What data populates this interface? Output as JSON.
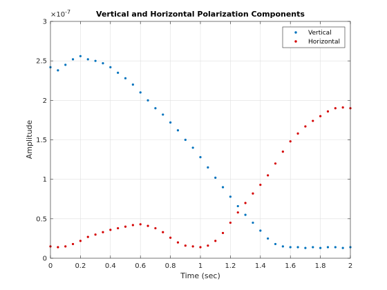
{
  "chart_data": {
    "type": "scatter",
    "title": "Vertical and Horizontal Polarization Components",
    "xlabel": "Time (sec)",
    "ylabel": "Amplitude",
    "y_exponent_label": "×10",
    "y_exponent_power": "-7",
    "xlim": [
      0,
      2
    ],
    "ylim": [
      0,
      3
    ],
    "x_ticks": [
      0,
      0.2,
      0.4,
      0.6,
      0.8,
      1,
      1.2,
      1.4,
      1.6,
      1.8,
      2
    ],
    "x_tick_labels": [
      "0",
      "0.2",
      "0.4",
      "0.6",
      "0.8",
      "1",
      "1.2",
      "1.4",
      "1.6",
      "1.8",
      "2"
    ],
    "y_ticks": [
      0,
      0.5,
      1,
      1.5,
      2,
      2.5,
      3
    ],
    "y_tick_labels": [
      "0",
      "0.5",
      "1",
      "1.5",
      "2",
      "2.5",
      "3"
    ],
    "grid": true,
    "legend_position": "top-right",
    "series": [
      {
        "name": "Vertical",
        "color": "#0072BD",
        "x": [
          0,
          0.05,
          0.1,
          0.15,
          0.2,
          0.25,
          0.3,
          0.35,
          0.4,
          0.45,
          0.5,
          0.55,
          0.6,
          0.65,
          0.7,
          0.75,
          0.8,
          0.85,
          0.9,
          0.95,
          1,
          1.05,
          1.1,
          1.15,
          1.2,
          1.25,
          1.3,
          1.35,
          1.4,
          1.45,
          1.5,
          1.55,
          1.6,
          1.65,
          1.7,
          1.75,
          1.8,
          1.85,
          1.9,
          1.95,
          2
        ],
        "y": [
          2.42,
          2.38,
          2.45,
          2.52,
          2.56,
          2.52,
          2.5,
          2.47,
          2.42,
          2.35,
          2.28,
          2.2,
          2.1,
          2.0,
          1.9,
          1.82,
          1.72,
          1.62,
          1.5,
          1.4,
          1.28,
          1.15,
          1.02,
          0.9,
          0.78,
          0.66,
          0.55,
          0.45,
          0.35,
          0.25,
          0.18,
          0.15,
          0.14,
          0.14,
          0.13,
          0.14,
          0.13,
          0.14,
          0.14,
          0.13,
          0.14
        ]
      },
      {
        "name": "Horizontal",
        "color": "#D40000",
        "x": [
          0,
          0.05,
          0.1,
          0.15,
          0.2,
          0.25,
          0.3,
          0.35,
          0.4,
          0.45,
          0.5,
          0.55,
          0.6,
          0.65,
          0.7,
          0.75,
          0.8,
          0.85,
          0.9,
          0.95,
          1,
          1.05,
          1.1,
          1.15,
          1.2,
          1.25,
          1.3,
          1.35,
          1.4,
          1.45,
          1.5,
          1.55,
          1.6,
          1.65,
          1.7,
          1.75,
          1.8,
          1.85,
          1.9,
          1.95,
          2
        ],
        "y": [
          0.15,
          0.14,
          0.15,
          0.18,
          0.22,
          0.27,
          0.3,
          0.33,
          0.36,
          0.38,
          0.4,
          0.42,
          0.43,
          0.41,
          0.38,
          0.33,
          0.26,
          0.2,
          0.16,
          0.15,
          0.14,
          0.16,
          0.22,
          0.32,
          0.45,
          0.58,
          0.7,
          0.82,
          0.93,
          1.05,
          1.2,
          1.35,
          1.48,
          1.58,
          1.67,
          1.74,
          1.8,
          1.86,
          1.9,
          1.91,
          1.9
        ]
      }
    ]
  }
}
